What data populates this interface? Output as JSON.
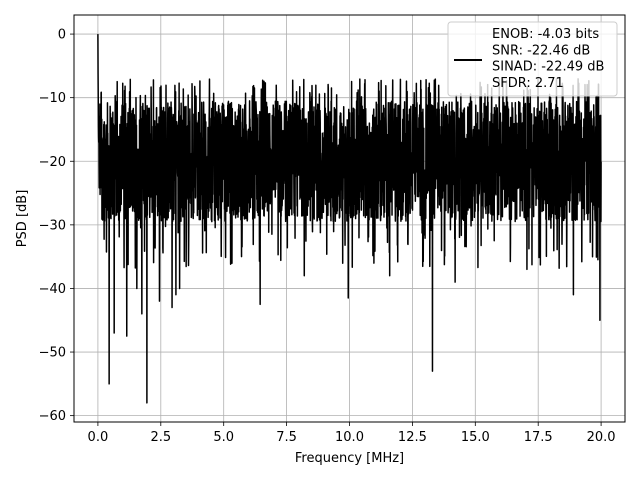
{
  "chart_data": {
    "type": "line",
    "xlabel": "Frequency [MHz]",
    "ylabel": "PSD [dB]",
    "xlim": [
      -0.95,
      20.95
    ],
    "ylim": [
      -61,
      3
    ],
    "x_ticks": [
      0.0,
      2.5,
      5.0,
      7.5,
      10.0,
      12.5,
      15.0,
      17.5,
      20.0
    ],
    "x_tick_labels": [
      "0.0",
      "2.5",
      "5.0",
      "7.5",
      "10.0",
      "12.5",
      "15.0",
      "17.5",
      "20.0"
    ],
    "y_ticks": [
      0,
      -10,
      -20,
      -30,
      -40,
      -50,
      -60
    ],
    "y_tick_labels": [
      "0",
      "−10",
      "−20",
      "−30",
      "−40",
      "−50",
      "−60"
    ],
    "grid": true,
    "legend_position": "top-right",
    "series": [
      {
        "name": "ENOB: -4.03 bits\nSNR: -22.46 dB\nSINAD: -22.49 dB\nSFDR: 2.71",
        "color": "#000000",
        "x_range": [
          0,
          20
        ],
        "points": 3000,
        "peak": {
          "x": 0.0,
          "y": 0
        },
        "typical_band": [
          -30,
          -10
        ],
        "max_level": -7,
        "dips": [
          {
            "x": 0.45,
            "y": -55
          },
          {
            "x": 0.65,
            "y": -47
          },
          {
            "x": 1.15,
            "y": -47.5
          },
          {
            "x": 1.55,
            "y": -40
          },
          {
            "x": 1.75,
            "y": -44
          },
          {
            "x": 1.95,
            "y": -58
          },
          {
            "x": 2.45,
            "y": -42
          },
          {
            "x": 2.95,
            "y": -43
          },
          {
            "x": 3.1,
            "y": -41
          },
          {
            "x": 3.25,
            "y": -40
          },
          {
            "x": 6.45,
            "y": -42.5
          },
          {
            "x": 8.2,
            "y": -38
          },
          {
            "x": 9.95,
            "y": -41.5
          },
          {
            "x": 11.6,
            "y": -38
          },
          {
            "x": 13.3,
            "y": -53
          },
          {
            "x": 14.2,
            "y": -39
          },
          {
            "x": 17.05,
            "y": -37
          },
          {
            "x": 18.9,
            "y": -41
          },
          {
            "x": 19.95,
            "y": -45
          }
        ]
      }
    ]
  }
}
